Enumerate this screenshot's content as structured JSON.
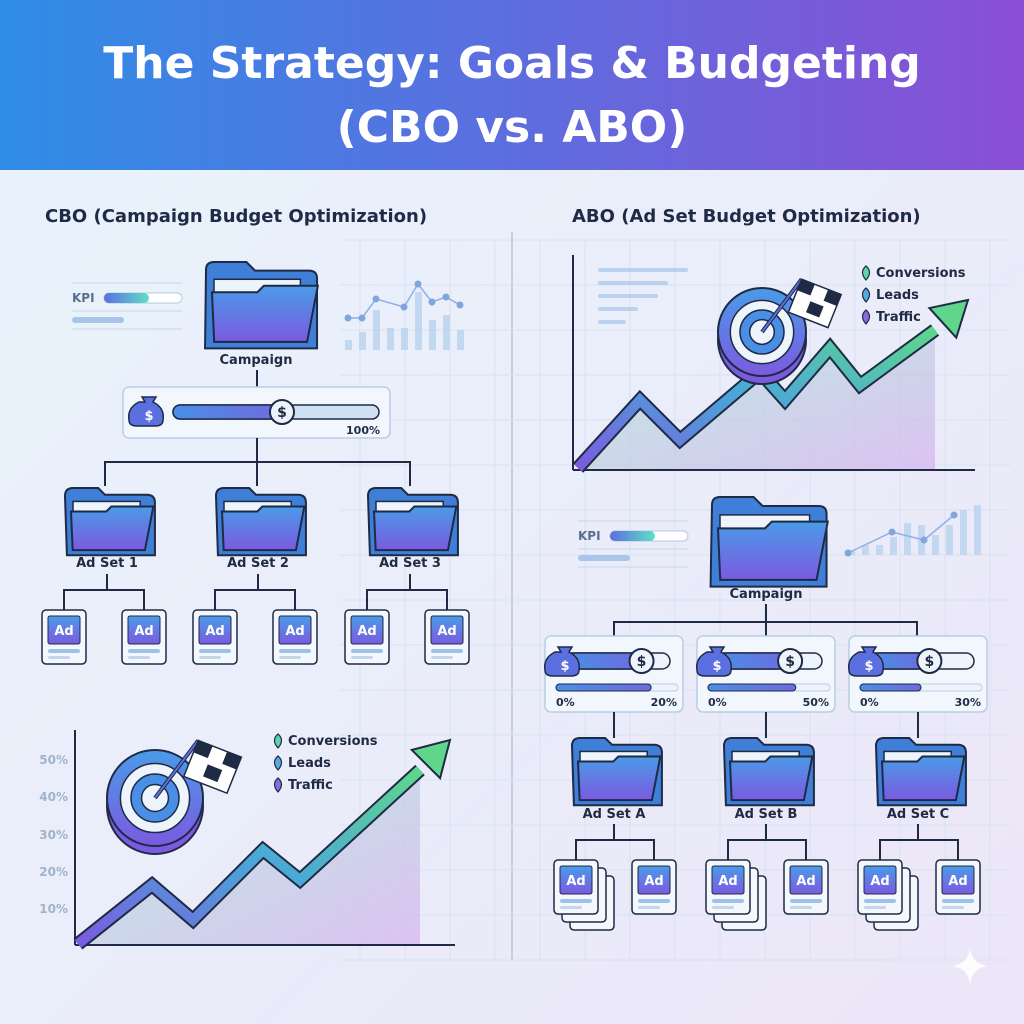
{
  "header": {
    "title_line1": "The Strategy: Goals & Budgeting",
    "title_line2": "(CBO vs. ABO)"
  },
  "colors": {
    "header_start": "#2f8de6",
    "header_end": "#8a4fd6",
    "folder_top": "#4a8fe6",
    "folder_bottom": "#7b5ae0",
    "accent_green": "#5fd68c",
    "line_dark": "#1f2a44",
    "background": "#eaf3fb"
  },
  "cbo": {
    "heading": "CBO (Campaign Budget Optimization)",
    "kpi_label": "KPI",
    "campaign_label": "Campaign",
    "budget": {
      "percent_label": "100%",
      "icon": "money-bag-icon",
      "knob_icon": "dollar-coin-icon"
    },
    "ad_sets": [
      "Ad Set 1",
      "Ad Set 2",
      "Ad Set 3"
    ],
    "ad_label": "Ad",
    "chart": {
      "y_ticks": [
        "50%",
        "40%",
        "30%",
        "20%",
        "10%"
      ],
      "legend": [
        "Conversions",
        "Leads",
        "Traffic"
      ],
      "icons": [
        "target-icon",
        "checkered-flag-icon",
        "trend-arrow-icon"
      ]
    }
  },
  "abo": {
    "heading": "ABO (Ad Set Budget Optimization)",
    "kpi_label": "KPI",
    "campaign_label": "Campaign",
    "budgets": [
      {
        "min_label": "0%",
        "max_label": "20%",
        "fill_fraction": 0.78
      },
      {
        "min_label": "0%",
        "max_label": "50%",
        "fill_fraction": 0.72
      },
      {
        "min_label": "0%",
        "max_label": "30%",
        "fill_fraction": 0.5
      }
    ],
    "ad_sets": [
      "Ad Set A",
      "Ad Set B",
      "Ad Set C"
    ],
    "ad_label": "Ad",
    "chart": {
      "legend": [
        "Conversions",
        "Leads",
        "Traffic"
      ]
    }
  }
}
